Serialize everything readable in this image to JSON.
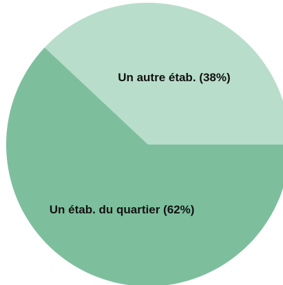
{
  "chart_data": {
    "type": "pie",
    "categories": [
      "Un autre étab.",
      "Un étab. du quartier"
    ],
    "values": [
      38,
      62
    ],
    "value_labels": [
      "(38%)",
      "(62%)"
    ],
    "colors": [
      "#b9ddcb",
      "#7dbf9d"
    ]
  }
}
